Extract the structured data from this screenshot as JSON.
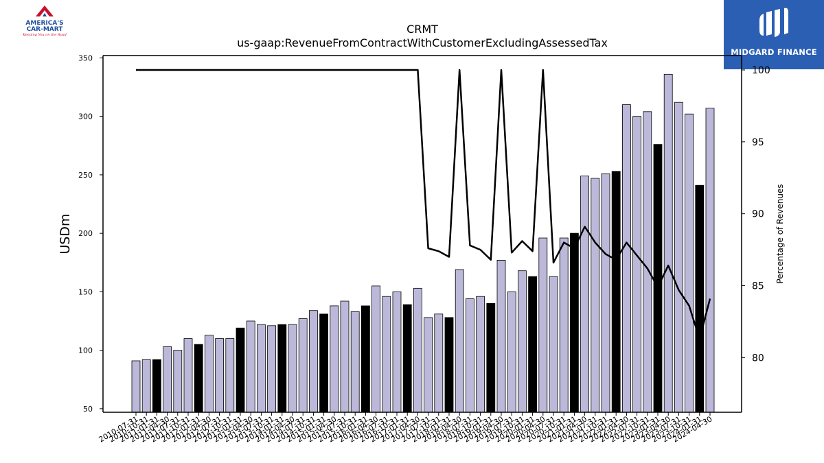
{
  "logos": {
    "left": {
      "line1": "AMERICA'S",
      "line2": "CAR-MART",
      "tagline": "Keeping You on the Road",
      "color": "#1f4e9c",
      "accent": "#c8102e"
    },
    "right": {
      "text": "MIDGARD FINANCE",
      "background": "#2b5fb3"
    }
  },
  "chart_data": {
    "type": "bar",
    "title": "CRMT",
    "subtitle": "us-gaap:RevenueFromContractWithCustomerExcludingAssessedTax",
    "ylabel": "USDm",
    "y2label": "Percentage of Revenues",
    "ylim": [
      47,
      352
    ],
    "y2lim": [
      76.2,
      101.0
    ],
    "yticks": [
      50,
      100,
      150,
      200,
      250,
      300,
      350
    ],
    "y2ticks": [
      80,
      85,
      90,
      95,
      100
    ],
    "grid": false,
    "colors": {
      "bar": "#bcb8d9",
      "bar_highlight": "#000000",
      "line": "#000000"
    },
    "categories": [
      "2010-07-31",
      "2010-10-31",
      "2011-01-31",
      "2011-04-30",
      "2011-07-31",
      "2011-10-31",
      "2012-01-31",
      "2012-04-30",
      "2012-07-31",
      "2012-10-31",
      "2013-01-31",
      "2013-04-30",
      "2013-07-31",
      "2013-10-31",
      "2014-01-31",
      "2014-04-30",
      "2014-07-31",
      "2014-10-31",
      "2015-01-31",
      "2015-04-30",
      "2015-07-31",
      "2015-10-31",
      "2016-01-31",
      "2016-04-30",
      "2016-07-31",
      "2016-10-31",
      "2017-01-31",
      "2017-04-30",
      "2017-07-31",
      "2017-10-31",
      "2018-01-31",
      "2018-04-30",
      "2018-07-31",
      "2018-10-31",
      "2019-01-31",
      "2019-04-30",
      "2019-07-31",
      "2019-10-31",
      "2020-01-31",
      "2020-04-30",
      "2020-07-31",
      "2020-10-31",
      "2021-01-31",
      "2021-04-30",
      "2021-07-31",
      "2021-10-31",
      "2022-01-31",
      "2022-04-30",
      "2022-07-31",
      "2022-10-31",
      "2023-01-31",
      "2023-04-30",
      "2023-07-31",
      "2023-10-31",
      "2024-01-31",
      "2024-04-30"
    ],
    "xtick_labels": [
      "2010-07-31",
      "2010-10-31",
      "2011-01-31",
      "2011-04-30",
      "2011-07-31",
      "2011-10-31",
      "2012-01-31",
      "2012-04-30",
      "2012-07-31",
      "2012-10-31",
      "2013-01-31",
      "2013-04-30",
      "2013-07-31",
      "2013-10-31",
      "2014-01-31",
      "2014-04-30",
      "2014-07-31",
      "2014-10-31",
      "2015-01-31",
      "2015-04-30",
      "2015-07-31",
      "2015-10-31",
      "2016-01-31",
      "2016-04-30",
      "2016-07-31",
      "2016-10-31",
      "2017-01-31",
      "2017-04-30",
      "2017-07-31",
      "2017-10-31",
      "2018-01-31",
      "2018-04-30",
      "2018-07-31",
      "2018-10-31",
      "2019-01-31",
      "2019-04-30",
      "2019-07-31",
      "2019-10-31",
      "2020-01-31",
      "2020-04-30",
      "2020-07-31",
      "2020-10-31",
      "2021-01-31",
      "2021-04-30",
      "2021-07-31",
      "2021-10-31",
      "2022-01-31",
      "2022-04-30",
      "2022-07-31",
      "2022-10-31",
      "2023-01-31",
      "2023-04-30",
      "2023-07-31",
      "2023-10-31",
      "2024-01-31",
      "2024-04-30"
    ],
    "highlight_indices": [
      2,
      6,
      10,
      14,
      18,
      22,
      26,
      30,
      34,
      38,
      42,
      46,
      50,
      54
    ],
    "series": [
      {
        "axis": "left",
        "type": "bar",
        "values": [
          91,
          92,
          92,
          103,
          100,
          110,
          105,
          113,
          110,
          110,
          119,
          125,
          122,
          121,
          122,
          122,
          127,
          134,
          131,
          138,
          142,
          133,
          138,
          155,
          146,
          150,
          139,
          153,
          128,
          131,
          128,
          169,
          144,
          146,
          140,
          177,
          150,
          168,
          163,
          196,
          163,
          196,
          200,
          249,
          247,
          251,
          253,
          310,
          300,
          304,
          276,
          336,
          312,
          302,
          241,
          307
        ]
      },
      {
        "axis": "right",
        "type": "line",
        "values": [
          100,
          100,
          100,
          100,
          100,
          100,
          100,
          100,
          100,
          100,
          100,
          100,
          100,
          100,
          100,
          100,
          100,
          100,
          100,
          100,
          100,
          100,
          100,
          100,
          100,
          100,
          100,
          100,
          87.6,
          87.4,
          87.0,
          100,
          87.8,
          87.5,
          86.8,
          100,
          87.3,
          88.1,
          87.4,
          100,
          86.6,
          88.0,
          87.6,
          89.1,
          88.0,
          87.2,
          86.8,
          88.0,
          87.1,
          86.2,
          84.9,
          86.4,
          84.7,
          83.6,
          81.3,
          84.1
        ]
      }
    ]
  }
}
